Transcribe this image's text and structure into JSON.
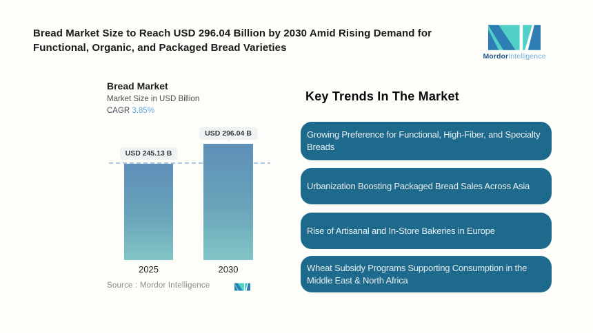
{
  "page": {
    "title": "Bread Market Size to Reach USD 296.04 Billion by 2030 Amid Rising Demand for Functional, Organic, and Packaged Bread Varieties"
  },
  "brand": {
    "name_bold": "Mordor",
    "name_light": "Intelligence"
  },
  "chart": {
    "title": "Bread Market",
    "subtitle": "Market Size in USD Billion",
    "cagr_label": "CAGR",
    "cagr_value": "3.85%",
    "source_label": "Source :",
    "source_value": "Mordor Intelligence"
  },
  "chart_data": {
    "type": "bar",
    "title": "Bread Market",
    "subtitle": "Market Size in USD Billion",
    "ylabel": "Market Size in USD Billion",
    "cagr": "3.85%",
    "categories": [
      "2025",
      "2030"
    ],
    "values": [
      245.13,
      296.04
    ],
    "unit": "USD Billion",
    "bar_labels": [
      "USD 245.13 B",
      "USD 296.04 B"
    ],
    "threshold_dashed_line_at": 245.13,
    "legend": "none",
    "grid": "off",
    "colors": {
      "bar_gradient_top": "#5d8fb8",
      "bar_gradient_bottom": "#82c5c6",
      "dashed_line": "#a9c7e0",
      "badge_background": "#eef2f3"
    }
  },
  "trends": {
    "heading": "Key Trends In The Market",
    "box_color": "#1d6a8c",
    "items": [
      "Growing Preference for Functional, High-Fiber, and Specialty Breads",
      "Urbanization Boosting Packaged Bread Sales Across Asia",
      "Rise of Artisanal and In-Store Bakeries in Europe",
      "Wheat Subsidy Programs Supporting Consumption in the Middle East & North Africa"
    ]
  }
}
